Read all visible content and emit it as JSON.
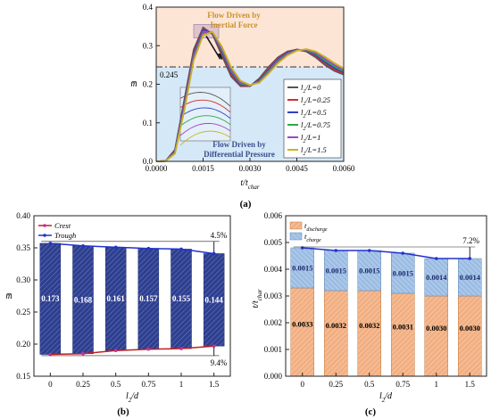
{
  "panel_labels": {
    "a": "(a)",
    "b": "(b)",
    "c": "(c)"
  },
  "colors": {
    "inertial_bg": "#fde5d6",
    "pressure_bg": "#d5e8f8",
    "bar_blue": "#2e3f8f",
    "bar_hatch": "#6f7fc4",
    "trough_line": "#2233cc",
    "crest_line": "#c02020",
    "crest_marker": "#d02aa0",
    "discharge_fill": "#f5b990",
    "charge_fill": "#a8c6e8",
    "annotation_text_orange": "#c8922a",
    "annotation_text_blue": "#3a4f8a"
  },
  "chart_data": [
    {
      "id": "a",
      "type": "line",
      "xlabel": "t/t",
      "xlabel_sub": "char",
      "ylabel": "m̅",
      "xlim": [
        0,
        0.006
      ],
      "ylim": [
        0,
        0.4
      ],
      "xticks": [
        "0.0000",
        "0.0015",
        "0.0030",
        "0.0045",
        "0.0060"
      ],
      "yticks": [
        "0.0",
        "0.1",
        "0.2",
        "0.3",
        "0.4"
      ],
      "threshold": 0.245,
      "threshold_label": "0.245",
      "annotations": {
        "upper": [
          "Flow Driven by",
          "Inertial Force"
        ],
        "lower": [
          "Flow Driven by",
          "Differential Pressure"
        ]
      },
      "legend_position": "bottom-right",
      "series": [
        {
          "name": "l",
          "sub": "2",
          "suffix": "/L=0",
          "color": "#555555",
          "points": [
            [
              0,
              0
            ],
            [
              0.0003,
              0.001
            ],
            [
              0.0006,
              0.03
            ],
            [
              0.0009,
              0.16
            ],
            [
              0.0012,
              0.29
            ],
            [
              0.0015,
              0.347
            ],
            [
              0.0018,
              0.33
            ],
            [
              0.0021,
              0.275
            ],
            [
              0.0024,
              0.22
            ],
            [
              0.0027,
              0.195
            ],
            [
              0.003,
              0.195
            ],
            [
              0.0033,
              0.215
            ],
            [
              0.0036,
              0.245
            ],
            [
              0.0039,
              0.27
            ],
            [
              0.0042,
              0.285
            ],
            [
              0.0045,
              0.29
            ],
            [
              0.0048,
              0.285
            ],
            [
              0.0051,
              0.27
            ],
            [
              0.0054,
              0.25
            ],
            [
              0.0057,
              0.235
            ],
            [
              0.006,
              0.225
            ]
          ]
        },
        {
          "name": "l",
          "sub": "2",
          "suffix": "/L=0.25",
          "color": "#d03030",
          "points": [
            [
              0,
              0
            ],
            [
              0.0003,
              0.001
            ],
            [
              0.0006,
              0.028
            ],
            [
              0.0009,
              0.155
            ],
            [
              0.0012,
              0.285
            ],
            [
              0.0015,
              0.343
            ],
            [
              0.0018,
              0.332
            ],
            [
              0.0021,
              0.28
            ],
            [
              0.0024,
              0.225
            ],
            [
              0.0027,
              0.197
            ],
            [
              0.003,
              0.195
            ],
            [
              0.0033,
              0.212
            ],
            [
              0.0036,
              0.242
            ],
            [
              0.0039,
              0.268
            ],
            [
              0.0042,
              0.284
            ],
            [
              0.0045,
              0.29
            ],
            [
              0.0048,
              0.287
            ],
            [
              0.0051,
              0.273
            ],
            [
              0.0054,
              0.255
            ],
            [
              0.0057,
              0.238
            ],
            [
              0.006,
              0.228
            ]
          ]
        },
        {
          "name": "l",
          "sub": "2",
          "suffix": "/L=0.5",
          "color": "#3040c8",
          "points": [
            [
              0,
              0
            ],
            [
              0.0003,
              0.001
            ],
            [
              0.0006,
              0.026
            ],
            [
              0.0009,
              0.15
            ],
            [
              0.0012,
              0.28
            ],
            [
              0.0015,
              0.34
            ],
            [
              0.0018,
              0.333
            ],
            [
              0.0021,
              0.284
            ],
            [
              0.0024,
              0.23
            ],
            [
              0.0027,
              0.2
            ],
            [
              0.003,
              0.196
            ],
            [
              0.0033,
              0.21
            ],
            [
              0.0036,
              0.238
            ],
            [
              0.0039,
              0.265
            ],
            [
              0.0042,
              0.282
            ],
            [
              0.0045,
              0.29
            ],
            [
              0.0048,
              0.288
            ],
            [
              0.0051,
              0.276
            ],
            [
              0.0054,
              0.258
            ],
            [
              0.0057,
              0.242
            ],
            [
              0.006,
              0.231
            ]
          ]
        },
        {
          "name": "l",
          "sub": "2",
          "suffix": "/L=0.75",
          "color": "#2ea84a",
          "points": [
            [
              0,
              0
            ],
            [
              0.0003,
              0.001
            ],
            [
              0.0006,
              0.024
            ],
            [
              0.0009,
              0.145
            ],
            [
              0.0012,
              0.275
            ],
            [
              0.0015,
              0.336
            ],
            [
              0.0018,
              0.334
            ],
            [
              0.0021,
              0.288
            ],
            [
              0.0024,
              0.234
            ],
            [
              0.0027,
              0.202
            ],
            [
              0.003,
              0.196
            ],
            [
              0.0033,
              0.208
            ],
            [
              0.0036,
              0.235
            ],
            [
              0.0039,
              0.262
            ],
            [
              0.0042,
              0.28
            ],
            [
              0.0045,
              0.289
            ],
            [
              0.0048,
              0.289
            ],
            [
              0.0051,
              0.279
            ],
            [
              0.0054,
              0.262
            ],
            [
              0.0057,
              0.246
            ],
            [
              0.006,
              0.234
            ]
          ]
        },
        {
          "name": "l",
          "sub": "2",
          "suffix": "/L=1",
          "color": "#9b48c4",
          "points": [
            [
              0,
              0
            ],
            [
              0.0003,
              0.001
            ],
            [
              0.0006,
              0.022
            ],
            [
              0.0009,
              0.14
            ],
            [
              0.0012,
              0.27
            ],
            [
              0.0015,
              0.333
            ],
            [
              0.0018,
              0.335
            ],
            [
              0.0021,
              0.292
            ],
            [
              0.0024,
              0.238
            ],
            [
              0.0027,
              0.205
            ],
            [
              0.003,
              0.197
            ],
            [
              0.0033,
              0.206
            ],
            [
              0.0036,
              0.232
            ],
            [
              0.0039,
              0.259
            ],
            [
              0.0042,
              0.278
            ],
            [
              0.0045,
              0.288
            ],
            [
              0.0048,
              0.29
            ],
            [
              0.0051,
              0.282
            ],
            [
              0.0054,
              0.266
            ],
            [
              0.0057,
              0.25
            ],
            [
              0.006,
              0.237
            ]
          ]
        },
        {
          "name": "l",
          "sub": "2",
          "suffix": "/L=1.5",
          "color": "#c9b322",
          "points": [
            [
              0,
              0
            ],
            [
              0.0003,
              0.001
            ],
            [
              0.0006,
              0.02
            ],
            [
              0.0009,
              0.132
            ],
            [
              0.0012,
              0.262
            ],
            [
              0.0015,
              0.327
            ],
            [
              0.0018,
              0.336
            ],
            [
              0.0021,
              0.298
            ],
            [
              0.0024,
              0.244
            ],
            [
              0.0027,
              0.209
            ],
            [
              0.003,
              0.198
            ],
            [
              0.0033,
              0.204
            ],
            [
              0.0036,
              0.228
            ],
            [
              0.0039,
              0.255
            ],
            [
              0.0042,
              0.275
            ],
            [
              0.0045,
              0.287
            ],
            [
              0.0048,
              0.291
            ],
            [
              0.0051,
              0.285
            ],
            [
              0.0054,
              0.271
            ],
            [
              0.0057,
              0.255
            ],
            [
              0.006,
              0.241
            ]
          ]
        }
      ]
    },
    {
      "id": "b",
      "type": "bar",
      "xlabel": "l",
      "xlabel_sub": "2",
      "xlabel_suffix": "/d",
      "ylabel": "m̅",
      "categories": [
        "0",
        "0.25",
        "0.5",
        "0.75",
        "1",
        "1.5"
      ],
      "ylim": [
        0.15,
        0.4
      ],
      "yticks": [
        "0.15",
        "0.20",
        "0.25",
        "0.30",
        "0.35",
        "0.40"
      ],
      "trough": [
        0.357,
        0.353,
        0.351,
        0.349,
        0.348,
        0.341
      ],
      "crest": [
        0.184,
        0.185,
        0.19,
        0.192,
        0.193,
        0.197
      ],
      "bar_labels": [
        "0.173",
        "0.168",
        "0.161",
        "0.157",
        "0.155",
        "0.144"
      ],
      "legend": [
        "Crest",
        "Trough"
      ],
      "legend_position": "top-left",
      "annotations": {
        "top_percent": "4.5%",
        "bottom_percent": "9.4%"
      }
    },
    {
      "id": "c",
      "type": "bar",
      "stacked": true,
      "xlabel": "l",
      "xlabel_sub": "2",
      "xlabel_suffix": "/d",
      "ylabel": "t/t",
      "ylabel_sub": "char",
      "categories": [
        "0",
        "0.25",
        "0.5",
        "0.75",
        "1",
        "1.5"
      ],
      "ylim": [
        0,
        0.006
      ],
      "yticks": [
        "0.000",
        "0.001",
        "0.002",
        "0.003",
        "0.004",
        "0.005",
        "0.006"
      ],
      "discharge": [
        0.0033,
        0.0032,
        0.0032,
        0.0031,
        0.003,
        0.003
      ],
      "charge": [
        0.0015,
        0.0015,
        0.0015,
        0.0015,
        0.0014,
        0.0014
      ],
      "discharge_labels": [
        "0.0033",
        "0.0032",
        "0.0032",
        "0.0031",
        "0.0030",
        "0.0030"
      ],
      "charge_labels": [
        "0.0015",
        "0.0015",
        "0.0015",
        "0.0015",
        "0.0014",
        "0.0014"
      ],
      "legend": [
        {
          "name": "t",
          "sub": "discharge"
        },
        {
          "name": "t",
          "sub": "charge"
        }
      ],
      "legend_position": "top-left",
      "annotations": {
        "top_percent": "7.2%"
      }
    }
  ]
}
